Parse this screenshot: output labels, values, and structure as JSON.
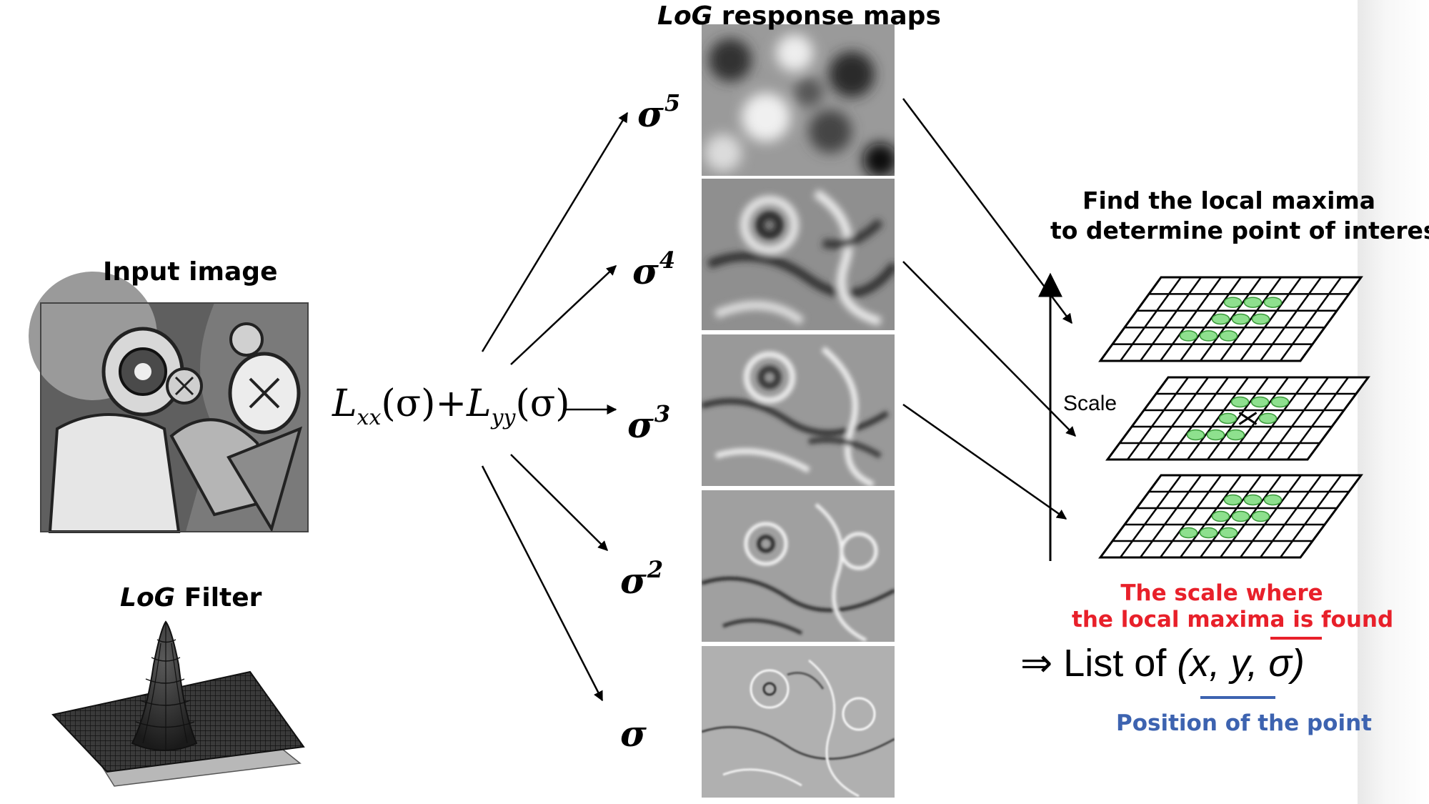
{
  "headings": {
    "log_response_maps_italic": "LoG",
    "log_response_maps_rest": " response maps",
    "input_image": "Input image",
    "log_filter_italic": "LoG",
    "log_filter_rest": " Filter",
    "find_local_maxima_line1": "Find the local maxima",
    "find_local_maxima_line2": "to determine point of interest"
  },
  "formula": {
    "L1": "L",
    "sub1": "xx",
    "sigma1": "(σ)",
    "plus": "+",
    "L2": "L",
    "sub2": "yy",
    "sigma2": "(σ)"
  },
  "sigmas": [
    {
      "base": "σ",
      "exp": "5"
    },
    {
      "base": "σ",
      "exp": "4"
    },
    {
      "base": "σ",
      "exp": "3"
    },
    {
      "base": "σ",
      "exp": "2"
    },
    {
      "base": "σ",
      "exp": ""
    }
  ],
  "scale_label": "Scale",
  "annotations": {
    "scale_where_line1": "The scale where",
    "scale_where_line2": "the local maxima is found",
    "list_arrow": "⇒",
    "list_prefix": "List of ",
    "list_tuple": "(x, y, σ)",
    "position_label": "Position of the point"
  },
  "colors": {
    "red": "#e8202a",
    "blue": "#3d63b0",
    "maxima_dots": "#8ee08e"
  }
}
